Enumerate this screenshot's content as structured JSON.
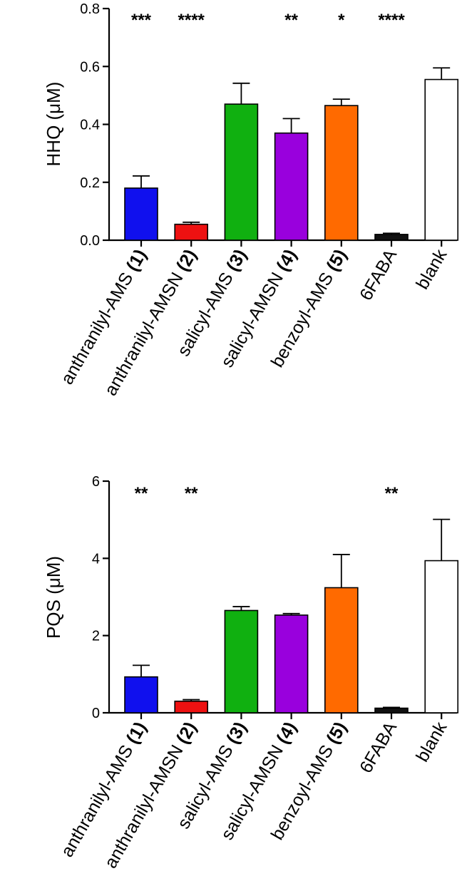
{
  "chart_data": [
    {
      "type": "bar",
      "ylabel": "HHQ (μM)",
      "ylim": [
        0,
        0.8
      ],
      "yticks": [
        "0.0",
        "0.2",
        "0.4",
        "0.6",
        "0.8"
      ],
      "categories": [
        {
          "name": "anthranilyl-AMS",
          "num": "(1)"
        },
        {
          "name": "anthranilyl-AMSN",
          "num": "(2)"
        },
        {
          "name": "salicyl-AMS",
          "num": "(3)"
        },
        {
          "name": "salicyl-AMSN",
          "num": "(4)"
        },
        {
          "name": "benzoyl-AMS",
          "num": "(5)"
        },
        {
          "name": "6FABA",
          "num": ""
        },
        {
          "name": "blank",
          "num": ""
        }
      ],
      "values": [
        0.18,
        0.055,
        0.47,
        0.37,
        0.465,
        0.02,
        0.555
      ],
      "errors": [
        0.042,
        0.007,
        0.072,
        0.05,
        0.022,
        0.004,
        0.04
      ],
      "colors": [
        "#1010ee",
        "#ee1111",
        "#10b010",
        "#9900dd",
        "#ff6a00",
        "#111111",
        "#ffffff"
      ],
      "significance": [
        "***",
        "****",
        "",
        "**",
        "*",
        "****",
        ""
      ]
    },
    {
      "type": "bar",
      "ylabel": "PQS (μM)",
      "ylim": [
        0,
        6
      ],
      "yticks": [
        "0",
        "2",
        "4",
        "6"
      ],
      "categories": [
        {
          "name": "anthranilyl-AMS",
          "num": "(1)"
        },
        {
          "name": "anthranilyl-AMSN",
          "num": "(2)"
        },
        {
          "name": "salicyl-AMS",
          "num": "(3)"
        },
        {
          "name": "salicyl-AMSN",
          "num": "(4)"
        },
        {
          "name": "benzoyl-AMS",
          "num": "(5)"
        },
        {
          "name": "6FABA",
          "num": ""
        },
        {
          "name": "blank",
          "num": ""
        }
      ],
      "values": [
        0.93,
        0.3,
        2.65,
        2.53,
        3.24,
        0.12,
        3.94
      ],
      "errors": [
        0.3,
        0.04,
        0.1,
        0.04,
        0.86,
        0.02,
        1.07
      ],
      "colors": [
        "#1010ee",
        "#ee1111",
        "#10b010",
        "#9900dd",
        "#ff6a00",
        "#111111",
        "#ffffff"
      ],
      "significance": [
        "**",
        "**",
        "",
        "",
        "",
        "**",
        ""
      ]
    }
  ]
}
